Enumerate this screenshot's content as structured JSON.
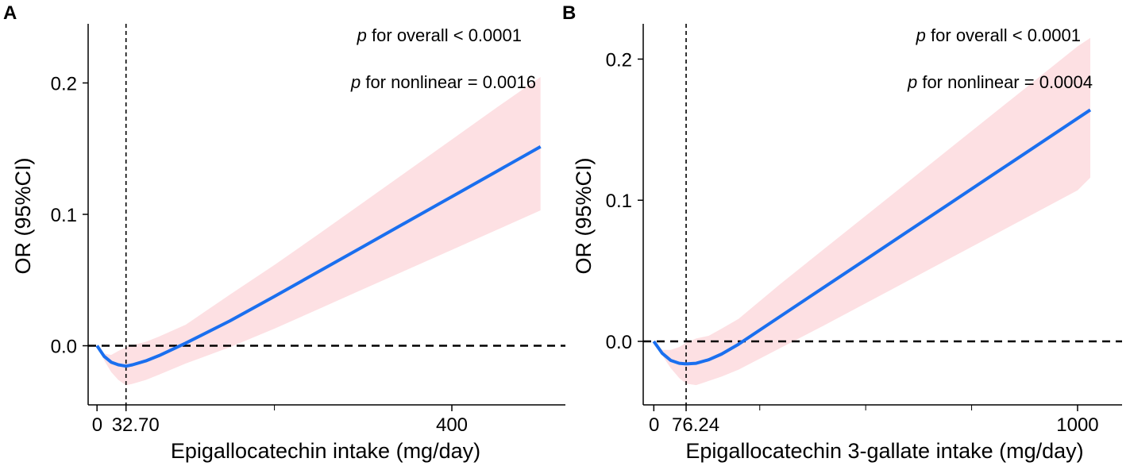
{
  "chart_data": [
    {
      "type": "line",
      "panel": "A",
      "xlabel": "Epigallocatechin intake (mg/day)",
      "ylabel": "OR (95%CI)",
      "xlim": [
        -10,
        528
      ],
      "ylim": [
        -0.045,
        0.245
      ],
      "x_ticks_major": [
        {
          "value": 0,
          "label": "0"
        },
        {
          "value": 32.7,
          "label": "32.70"
        },
        {
          "value": 400,
          "label": "400"
        }
      ],
      "x_ticks_minor": [
        200
      ],
      "y_ticks": [
        {
          "value": 0.0,
          "label": "0.0"
        },
        {
          "value": 0.1,
          "label": "0.1"
        },
        {
          "value": 0.2,
          "label": "0.2"
        }
      ],
      "reference_x": 32.7,
      "reference_y": 0,
      "annotations": [
        {
          "italic": "p",
          "text": " for overall < 0.0001"
        },
        {
          "italic": "p",
          "text": " for nonlinear = 0.0016"
        }
      ],
      "series": [
        {
          "name": "OR",
          "color": "#1a6fef",
          "x": [
            0,
            8,
            16,
            24,
            32.7,
            40,
            55,
            70,
            100,
            150,
            200,
            250,
            300,
            350,
            400,
            450,
            500
          ],
          "y": [
            0,
            -0.008,
            -0.0125,
            -0.0145,
            -0.0155,
            -0.0145,
            -0.0115,
            -0.0075,
            0.002,
            0.019,
            0.0375,
            0.0565,
            0.0755,
            0.0945,
            0.1135,
            0.1325,
            0.1515
          ],
          "lower": [
            0,
            -0.011,
            -0.02,
            -0.026,
            -0.03,
            -0.029,
            -0.026,
            -0.022,
            -0.0135,
            -0.001,
            0.013,
            0.028,
            0.043,
            0.058,
            0.073,
            0.088,
            0.103
          ],
          "upper": [
            0,
            -0.006,
            -0.007,
            -0.004,
            -0.001,
            0.0005,
            0.003,
            0.007,
            0.016,
            0.039,
            0.0615,
            0.085,
            0.109,
            0.133,
            0.157,
            0.181,
            0.2045
          ]
        }
      ]
    },
    {
      "type": "line",
      "panel": "B",
      "xlabel": "Epigallocatechin 3-gallate intake (mg/day)",
      "ylabel": "OR (95%CI)",
      "xlim": [
        -25,
        1105
      ],
      "ylim": [
        -0.045,
        0.225
      ],
      "x_ticks_major": [
        {
          "value": 0,
          "label": "0"
        },
        {
          "value": 76.24,
          "label": "76.24"
        },
        {
          "value": 1000,
          "label": "1000"
        }
      ],
      "x_ticks_minor": [
        250,
        500,
        750
      ],
      "y_ticks": [
        {
          "value": 0.0,
          "label": "0.0"
        },
        {
          "value": 0.1,
          "label": "0.1"
        },
        {
          "value": 0.2,
          "label": "0.2"
        }
      ],
      "reference_x": 76.24,
      "reference_y": 0,
      "annotations": [
        {
          "italic": "p",
          "text": " for overall < 0.0001"
        },
        {
          "italic": "p",
          "text": " for nonlinear = 0.0004"
        }
      ],
      "series": [
        {
          "name": "OR",
          "color": "#1a6fef",
          "x": [
            0,
            20,
            40,
            60,
            76.24,
            100,
            130,
            160,
            200,
            300,
            400,
            500,
            600,
            700,
            800,
            900,
            1000,
            1030
          ],
          "y": [
            0,
            -0.0085,
            -0.0135,
            -0.0155,
            -0.016,
            -0.0155,
            -0.013,
            -0.009,
            -0.002,
            0.018,
            0.038,
            0.058,
            0.078,
            0.098,
            0.118,
            0.138,
            0.158,
            0.164
          ],
          "lower": [
            0,
            -0.01,
            -0.019,
            -0.026,
            -0.03,
            -0.031,
            -0.028,
            -0.025,
            -0.02,
            -0.0045,
            0.011,
            0.027,
            0.043,
            0.059,
            0.075,
            0.091,
            0.107,
            0.116
          ],
          "upper": [
            0,
            -0.006,
            -0.006,
            -0.004,
            -0.001,
            0.002,
            0.004,
            0.009,
            0.016,
            0.041,
            0.065,
            0.089,
            0.113,
            0.137,
            0.161,
            0.185,
            0.209,
            0.215
          ]
        }
      ]
    }
  ]
}
